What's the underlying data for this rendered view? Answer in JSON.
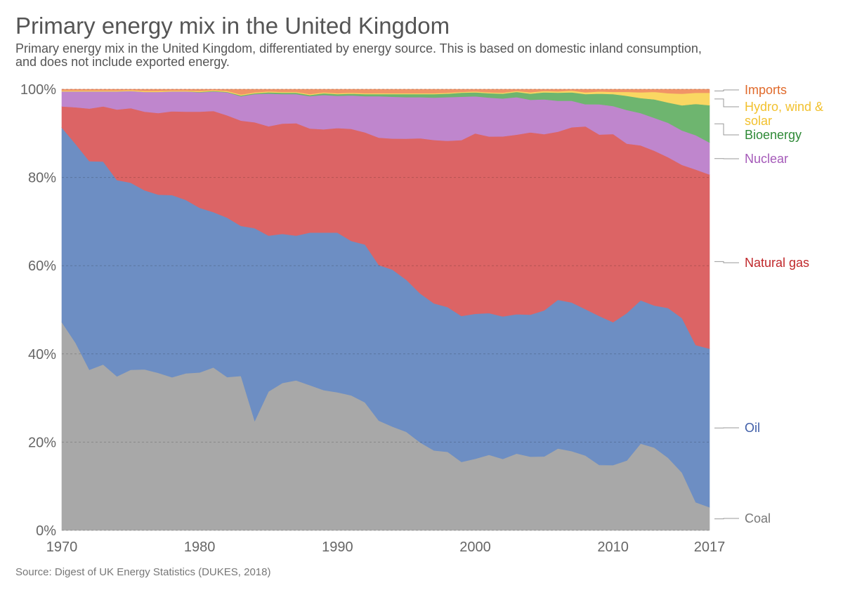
{
  "title": "Primary energy mix in the United Kingdom",
  "subtitle": "Primary energy mix in the United Kingdom, differentiated by energy source. This is based on domestic inland consumption, and does not include exported energy.",
  "source": "Source: Digest of UK Energy Statistics (DUKES, 2018)",
  "chart_data": {
    "type": "area",
    "stacked": true,
    "x_start": 1970,
    "x_end": 2017,
    "xlim": [
      1970,
      2017
    ],
    "ylim": [
      0,
      100
    ],
    "x_ticks": [
      "1970",
      "1980",
      "1990",
      "2000",
      "2010",
      "2017"
    ],
    "y_ticks": [
      "0%",
      "20%",
      "40%",
      "60%",
      "80%",
      "100%"
    ],
    "grid": "horizontal dashed",
    "legend": "right, labels at series ends",
    "series": [
      {
        "name": "Coal",
        "color": "#a8a8a8",
        "label_color": "#777777",
        "values": [
          47.2,
          42.5,
          36.4,
          37.6,
          34.9,
          36.4,
          36.5,
          35.7,
          34.7,
          35.6,
          35.8,
          36.7,
          34.6,
          34.9,
          24.8,
          31.5,
          33.4,
          34.0,
          32.9,
          31.8,
          31.3,
          30.6,
          29.0,
          24.9,
          23.5,
          22.3,
          19.9,
          18.1,
          17.8,
          15.5,
          16.2,
          17.1,
          16.2,
          17.4,
          16.7,
          16.8,
          18.5,
          17.9,
          16.9,
          14.7,
          14.7,
          15.8,
          19.6,
          18.7,
          16.4,
          12.9,
          6.3,
          5.2
        ]
      },
      {
        "name": "Oil",
        "color": "#6d8ec3",
        "label_color": "#3f5ea8",
        "values": [
          44.1,
          45.1,
          47.3,
          46.0,
          44.5,
          42.4,
          40.6,
          40.4,
          41.3,
          39.3,
          37.3,
          35.0,
          36.0,
          33.9,
          43.7,
          35.3,
          33.8,
          32.8,
          34.6,
          35.7,
          36.2,
          35.0,
          35.8,
          35.3,
          35.6,
          34.4,
          33.7,
          33.3,
          32.8,
          33.0,
          32.8,
          32.1,
          32.3,
          31.6,
          32.2,
          33.2,
          33.6,
          33.6,
          33.1,
          33.5,
          32.2,
          33.3,
          32.4,
          32.1,
          33.9,
          34.5,
          35.2,
          35.7
        ]
      },
      {
        "name": "Natural gas",
        "color": "#dc6465",
        "label_color": "#c0282b",
        "values": [
          4.8,
          8.3,
          11.9,
          12.5,
          16.0,
          16.9,
          17.8,
          18.5,
          19.0,
          20.0,
          21.8,
          22.8,
          23.1,
          23.8,
          24.0,
          24.8,
          25.0,
          25.5,
          23.6,
          23.4,
          23.7,
          25.4,
          25.4,
          28.9,
          29.7,
          31.9,
          35.1,
          37.0,
          37.7,
          39.8,
          40.8,
          40.0,
          40.8,
          40.7,
          41.3,
          40.1,
          38.0,
          39.6,
          41.3,
          40.8,
          42.4,
          38.3,
          35.0,
          35.0,
          34.1,
          34.2,
          39.3,
          39.2
        ]
      },
      {
        "name": "Nuclear",
        "color": "#bf86cd",
        "label_color": "#a55ab9",
        "values": [
          3.4,
          3.6,
          3.9,
          3.4,
          4.1,
          3.9,
          4.5,
          4.8,
          4.5,
          4.6,
          4.4,
          4.4,
          5.2,
          5.5,
          6.4,
          7.4,
          6.7,
          6.6,
          7.3,
          7.8,
          7.3,
          7.6,
          8.2,
          9.4,
          9.5,
          9.4,
          9.3,
          9.6,
          9.9,
          9.8,
          8.4,
          8.8,
          8.6,
          8.5,
          7.4,
          7.9,
          7.0,
          6.0,
          5.0,
          6.8,
          6.3,
          7.6,
          7.3,
          7.4,
          7.8,
          7.7,
          7.7,
          7.2
        ]
      },
      {
        "name": "Bioenergy",
        "color": "#6eb56f",
        "label_color": "#2f8a37",
        "values": [
          0.0,
          0.0,
          0.0,
          0.0,
          0.0,
          0.0,
          0.0,
          0.0,
          0.0,
          0.0,
          0.1,
          0.1,
          0.1,
          0.2,
          0.2,
          0.3,
          0.3,
          0.3,
          0.3,
          0.4,
          0.4,
          0.4,
          0.5,
          0.5,
          0.6,
          0.7,
          0.7,
          0.8,
          0.8,
          0.9,
          0.9,
          1.0,
          1.1,
          1.2,
          1.4,
          1.6,
          1.8,
          1.9,
          2.3,
          2.4,
          2.7,
          3.2,
          3.4,
          4.2,
          4.6,
          5.6,
          7.0,
          8.4
        ]
      },
      {
        "name": "Hydro, wind & solar",
        "color": "#fad762",
        "label_color": "#f2c12e",
        "values": [
          0.2,
          0.2,
          0.2,
          0.2,
          0.2,
          0.2,
          0.2,
          0.2,
          0.2,
          0.2,
          0.2,
          0.2,
          0.2,
          0.2,
          0.2,
          0.2,
          0.2,
          0.2,
          0.2,
          0.2,
          0.2,
          0.2,
          0.2,
          0.2,
          0.2,
          0.2,
          0.2,
          0.2,
          0.2,
          0.2,
          0.2,
          0.2,
          0.2,
          0.2,
          0.3,
          0.3,
          0.3,
          0.4,
          0.4,
          0.5,
          0.5,
          0.9,
          1.3,
          1.7,
          2.1,
          2.6,
          2.5,
          2.8
        ]
      },
      {
        "name": "Imports",
        "color": "#f19467",
        "label_color": "#e06a2b",
        "values": [
          0.3,
          0.3,
          0.3,
          0.3,
          0.3,
          0.2,
          0.4,
          0.4,
          0.3,
          0.3,
          0.4,
          0.2,
          0.4,
          1.2,
          0.7,
          0.5,
          0.6,
          0.6,
          1.1,
          0.7,
          0.9,
          0.8,
          0.9,
          0.9,
          0.9,
          0.9,
          0.9,
          0.9,
          0.8,
          0.6,
          0.5,
          0.7,
          0.8,
          0.4,
          0.7,
          0.4,
          0.5,
          0.3,
          0.7,
          0.5,
          0.6,
          0.6,
          0.7,
          0.6,
          0.9,
          1.0,
          0.8,
          0.8
        ]
      }
    ]
  }
}
